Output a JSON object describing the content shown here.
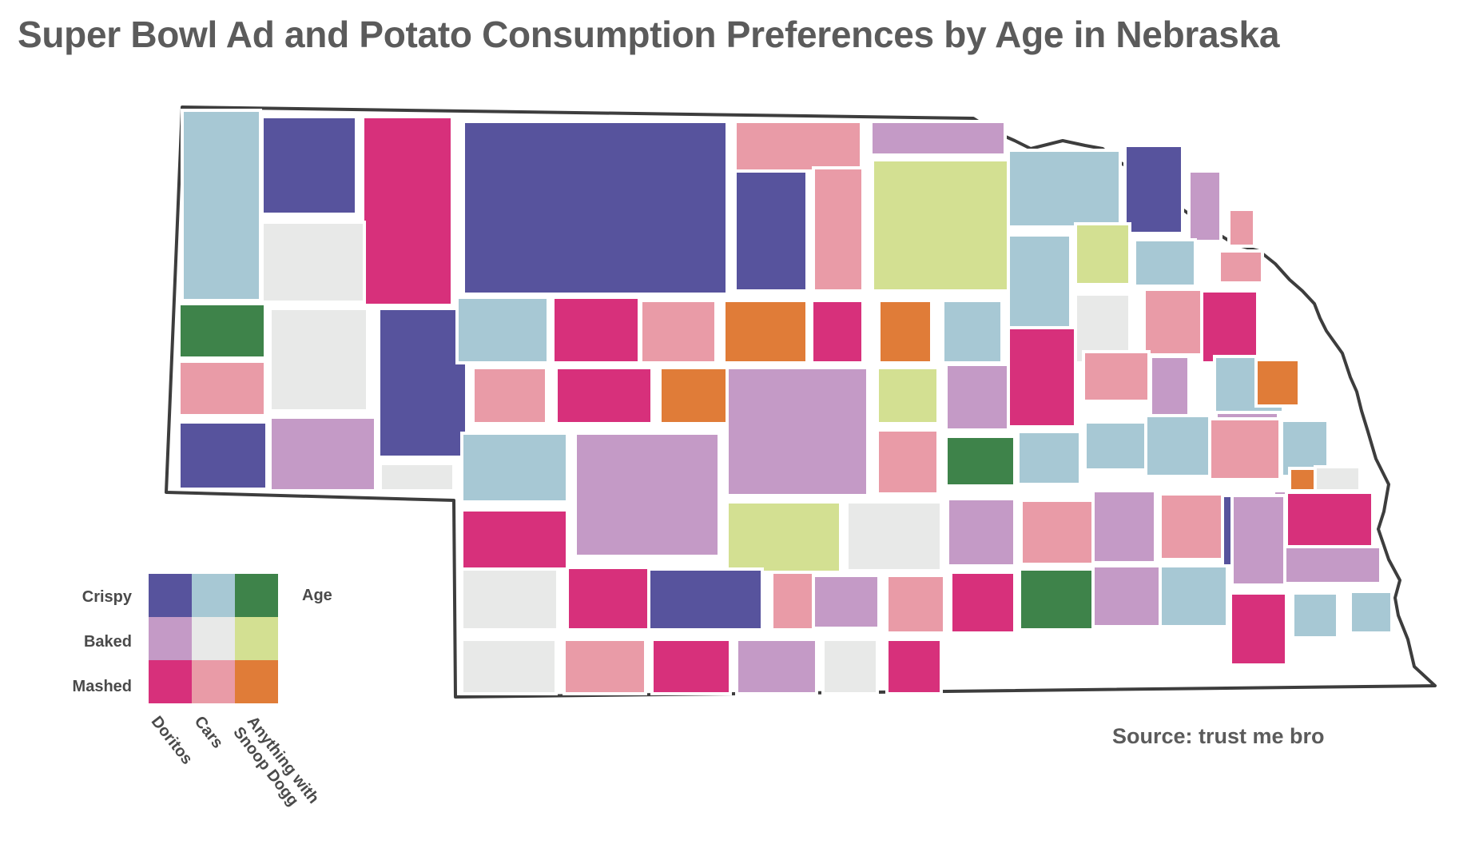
{
  "title": "Super Bowl Ad and Potato Consumption Preferences by Age in Nebraska",
  "source": "Source: trust me bro",
  "legend": {
    "rows": [
      "Crispy",
      "Baked",
      "Mashed"
    ],
    "cols": [
      "Doritos",
      "Cars",
      "Anything with\nSnoop Dogg"
    ],
    "axis_label": "Age",
    "colors": [
      [
        "#57539d",
        "#a7c8d4",
        "#3e834a"
      ],
      [
        "#c49ac6",
        "#e8e9e8",
        "#d3e092"
      ],
      [
        "#d7307b",
        "#e99ba7",
        "#e07c38"
      ]
    ]
  },
  "counties": [
    {
      "r": 0,
      "c": 1
    },
    {
      "r": 0,
      "c": 0
    },
    {
      "r": 2,
      "c": 0
    },
    {
      "r": 0,
      "c": 0
    },
    {
      "r": 2,
      "c": 1
    },
    {
      "r": 1,
      "c": 0
    },
    {
      "r": 1,
      "c": 1
    },
    {
      "r": 0,
      "c": 0
    },
    {
      "r": 2,
      "c": 1
    },
    {
      "r": 1,
      "c": 2
    },
    {
      "r": 0,
      "c": 1
    },
    {
      "r": 0,
      "c": 0
    },
    {
      "r": 1,
      "c": 0
    },
    {
      "r": 2,
      "c": 1
    },
    {
      "r": 0,
      "c": 2
    },
    {
      "r": 2,
      "c": 1
    },
    {
      "r": 0,
      "c": 0
    },
    {
      "r": 1,
      "c": 1
    },
    {
      "r": 1,
      "c": 0
    },
    {
      "r": 0,
      "c": 0
    },
    {
      "r": 1,
      "c": 1
    },
    {
      "r": 0,
      "c": 1
    },
    {
      "r": 2,
      "c": 0
    },
    {
      "r": 2,
      "c": 1
    },
    {
      "r": 2,
      "c": 2
    },
    {
      "r": 2,
      "c": 0
    },
    {
      "r": 2,
      "c": 2
    },
    {
      "r": 0,
      "c": 1
    },
    {
      "r": 0,
      "c": 1
    },
    {
      "r": 1,
      "c": 2
    },
    {
      "r": 0,
      "c": 1
    },
    {
      "r": 2,
      "c": 1
    },
    {
      "r": 1,
      "c": 1
    },
    {
      "r": 2,
      "c": 1
    },
    {
      "r": 2,
      "c": 0
    },
    {
      "r": 1,
      "c": 0
    },
    {
      "r": 2,
      "c": 1
    },
    {
      "r": 2,
      "c": 0
    },
    {
      "r": 2,
      "c": 2
    },
    {
      "r": 1,
      "c": 0
    },
    {
      "r": 1,
      "c": 2
    },
    {
      "r": 1,
      "c": 0
    },
    {
      "r": 2,
      "c": 0
    },
    {
      "r": 2,
      "c": 1
    },
    {
      "r": 1,
      "c": 0
    },
    {
      "r": 0,
      "c": 1
    },
    {
      "r": 2,
      "c": 2
    },
    {
      "r": 0,
      "c": 1
    },
    {
      "r": 0,
      "c": 2
    },
    {
      "r": 2,
      "c": 1
    },
    {
      "r": 0,
      "c": 1
    },
    {
      "r": 0,
      "c": 1
    },
    {
      "r": 2,
      "c": 1
    },
    {
      "r": 0,
      "c": 1
    },
    {
      "r": 2,
      "c": 2
    },
    {
      "r": 1,
      "c": 1
    },
    {
      "r": 1,
      "c": 0
    },
    {
      "r": 0,
      "c": 1
    },
    {
      "r": 1,
      "c": 0
    },
    {
      "r": 1,
      "c": 2
    },
    {
      "r": 1,
      "c": 1
    },
    {
      "r": 1,
      "c": 0
    },
    {
      "r": 2,
      "c": 1
    },
    {
      "r": 1,
      "c": 0
    },
    {
      "r": 2,
      "c": 1
    },
    {
      "r": 0,
      "c": 0
    },
    {
      "r": 2,
      "c": 0
    },
    {
      "r": 2,
      "c": 0
    },
    {
      "r": 1,
      "c": 1
    },
    {
      "r": 2,
      "c": 0
    },
    {
      "r": 0,
      "c": 0
    },
    {
      "r": 2,
      "c": 1
    },
    {
      "r": 1,
      "c": 0
    },
    {
      "r": 2,
      "c": 1
    },
    {
      "r": 2,
      "c": 0
    },
    {
      "r": 0,
      "c": 2
    },
    {
      "r": 1,
      "c": 0
    },
    {
      "r": 0,
      "c": 1
    },
    {
      "r": 1,
      "c": 0
    },
    {
      "r": 2,
      "c": 0
    },
    {
      "r": 0,
      "c": 1
    },
    {
      "r": 0,
      "c": 1
    },
    {
      "r": 1,
      "c": 0
    },
    {
      "r": 1,
      "c": 1
    },
    {
      "r": 2,
      "c": 1
    },
    {
      "r": 2,
      "c": 0
    },
    {
      "r": 1,
      "c": 0
    },
    {
      "r": 1,
      "c": 1
    },
    {
      "r": 2,
      "c": 0
    }
  ]
}
